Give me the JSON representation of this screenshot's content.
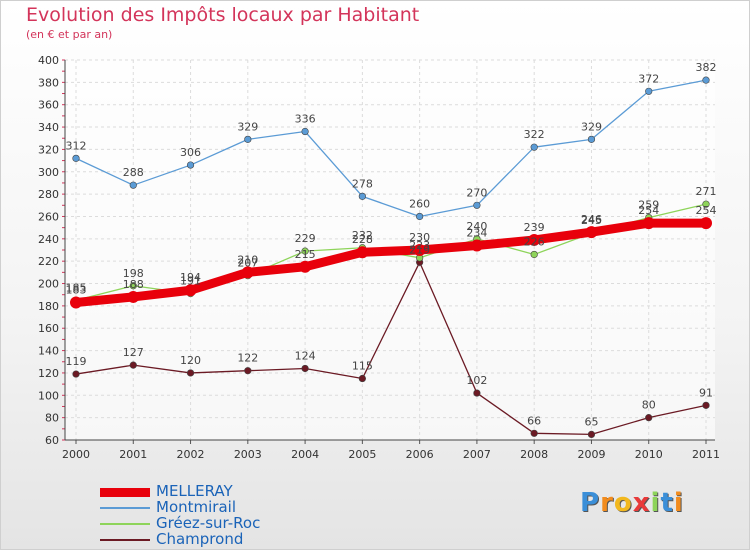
{
  "chart_data": {
    "type": "line",
    "title": "Evolution des Impôts locaux par Habitant",
    "subtitle": "(en € et par an)",
    "x": [
      "2000",
      "2001",
      "2002",
      "2003",
      "2004",
      "2005",
      "2006",
      "2007",
      "2008",
      "2009",
      "2010",
      "2011"
    ],
    "ylim": [
      60,
      400
    ],
    "yticks": [
      60,
      80,
      100,
      120,
      140,
      160,
      180,
      200,
      220,
      240,
      260,
      280,
      300,
      320,
      340,
      360,
      380,
      400
    ],
    "grid": true,
    "legend_position": "bottom-left",
    "series": [
      {
        "name": "MELLERAY",
        "color": "#e8000b",
        "values": [
          183,
          188,
          194,
          210,
          215,
          228,
          230,
          234,
          239,
          246,
          254,
          254
        ]
      },
      {
        "name": "Montmirail",
        "color": "#5b9bd5",
        "values": [
          312,
          288,
          306,
          329,
          336,
          278,
          260,
          270,
          322,
          329,
          372,
          382
        ]
      },
      {
        "name": "Gréez-sur-Roc",
        "color": "#8ed45a",
        "values": [
          185,
          198,
          191,
          207,
          229,
          232,
          223,
          240,
          226,
          245,
          259,
          271
        ]
      },
      {
        "name": "Champrond",
        "color": "#6b1a24",
        "values": [
          119,
          127,
          120,
          122,
          124,
          115,
          219,
          102,
          66,
          65,
          80,
          91
        ]
      }
    ]
  },
  "logo": {
    "letters": [
      "P",
      "r",
      "o",
      "x",
      "i",
      "t",
      "i"
    ],
    "colors": [
      "#3b8fd8",
      "#f28c1e",
      "#f2b81e",
      "#e83a3a",
      "#8ed45a",
      "#3b8fd8",
      "#f28c1e"
    ]
  }
}
